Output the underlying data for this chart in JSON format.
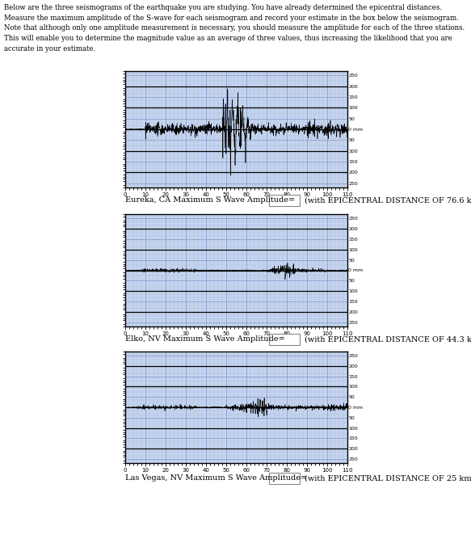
{
  "intro_text_lines": [
    "Below are the three seismograms of the earthquake you are studying. You have already determined the epicentral distances.",
    "Measure the maximum amplitude of the S-wave for each seismogram and record your estimate in the box below the seismogram.",
    "Note that although only one amplitude measurement is necessary, you should measure the amplitude for each of the three stations.",
    "This will enable you to determine the magnitude value as an average of three values, thus increasing the likelihood that you are",
    "accurate in your estimate."
  ],
  "stations": [
    {
      "name": "Eureka, CA",
      "distance": "76.6"
    },
    {
      "name": "Elko, NV",
      "distance": "44.3"
    },
    {
      "name": "Las Vegas, NV",
      "distance": "25"
    }
  ],
  "bg_color": "#c8d8f0",
  "grid_major_color": "#8899cc",
  "grid_minor_color": "#aabbdd",
  "seismo_color": "#000000",
  "text_color": "#000000",
  "label_color": "#000000",
  "box_color": "#ffffff",
  "border_color": "#000000",
  "xlim": [
    0,
    110
  ],
  "xticks": [
    0,
    10,
    20,
    30,
    40,
    50,
    60,
    70,
    80,
    90,
    100,
    110
  ],
  "yticks_right": [
    -250,
    -200,
    -150,
    -100,
    -50,
    0,
    50,
    100,
    150,
    200,
    250
  ],
  "fig_bg": "#ffffff",
  "fig_width": 5.83,
  "fig_height": 6.67,
  "dpi": 100
}
